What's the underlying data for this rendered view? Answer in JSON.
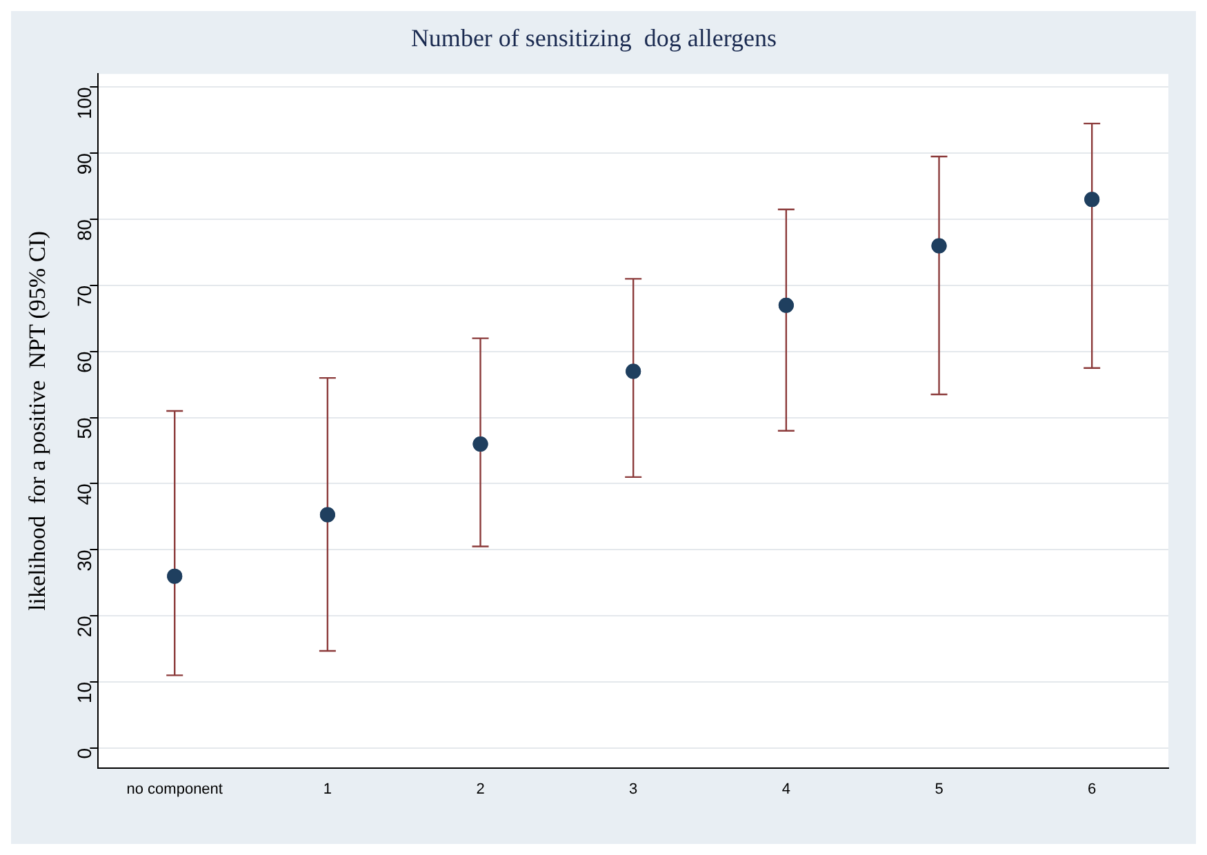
{
  "chart_data": {
    "type": "scatter",
    "title": "Number of sensitizing  dog allergens",
    "ylabel": "likelihood  for a positive  NPT (95% CI)",
    "categories": [
      "no component",
      "1",
      "2",
      "3",
      "4",
      "5",
      "6"
    ],
    "series": [
      {
        "color": "#1f3f5f",
        "values": [
          26,
          35.3,
          46,
          57,
          67,
          76,
          83
        ],
        "errors": [
          [
            11,
            51
          ],
          [
            14.7,
            56
          ],
          [
            30.5,
            62
          ],
          [
            41,
            71
          ],
          [
            48,
            81.5
          ],
          [
            53.5,
            89.5
          ],
          [
            57.5,
            94.5
          ]
        ]
      }
    ],
    "ylim": [
      -3,
      102
    ],
    "yticks": [
      0,
      10,
      20,
      30,
      40,
      50,
      60,
      70,
      80,
      90,
      100
    ],
    "grid": "y",
    "marker": "circle",
    "legend": false
  }
}
